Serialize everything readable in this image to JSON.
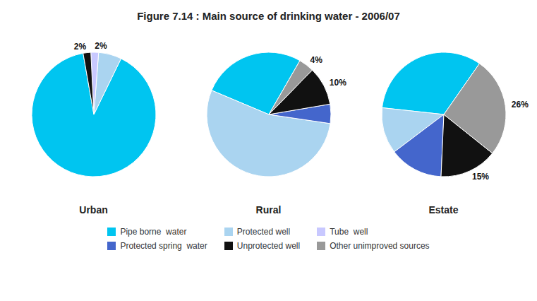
{
  "title": "Figure 7.14 : Main source of drinking water - 2006/07",
  "legend": "bottom",
  "series": [
    {
      "name": "Pipe borne  water",
      "color": "#00c5f0"
    },
    {
      "name": "Protected well",
      "color": "#aad4f0"
    },
    {
      "name": "Tube  well",
      "color": "#c8c8ff"
    },
    {
      "name": "Protected spring  water",
      "color": "#4466cc"
    },
    {
      "name": "Unprotected well",
      "color": "#111111"
    },
    {
      "name": "Other unimproved sources",
      "color": "#999999"
    }
  ],
  "chart_data": [
    {
      "type": "pie",
      "title": "Urban",
      "categories": [
        "Pipe borne  water",
        "Protected well",
        "Tube  well",
        "Unprotected well"
      ],
      "values": [
        90,
        6,
        2,
        2
      ],
      "colors": [
        "#00c5f0",
        "#aad4f0",
        "#c8c8ff",
        "#111111"
      ],
      "value_labels": [
        null,
        null,
        "2%",
        "2%"
      ]
    },
    {
      "type": "pie",
      "title": "Rural",
      "categories": [
        "Pipe borne  water",
        "Protected well",
        "Protected spring  water",
        "Unprotected well",
        "Other unimproved sources"
      ],
      "values": [
        27,
        54,
        5,
        10,
        4
      ],
      "colors": [
        "#00c5f0",
        "#aad4f0",
        "#4466cc",
        "#111111",
        "#999999"
      ],
      "value_labels": [
        null,
        null,
        null,
        "10%",
        "4%"
      ]
    },
    {
      "type": "pie",
      "title": "Estate",
      "categories": [
        "Pipe borne  water",
        "Protected well",
        "Protected spring  water",
        "Unprotected well",
        "Other unimproved sources"
      ],
      "values": [
        33,
        12,
        14,
        15,
        26
      ],
      "colors": [
        "#00c5f0",
        "#aad4f0",
        "#4466cc",
        "#111111",
        "#999999"
      ],
      "value_labels": [
        null,
        null,
        null,
        "15%",
        "26%"
      ]
    }
  ]
}
